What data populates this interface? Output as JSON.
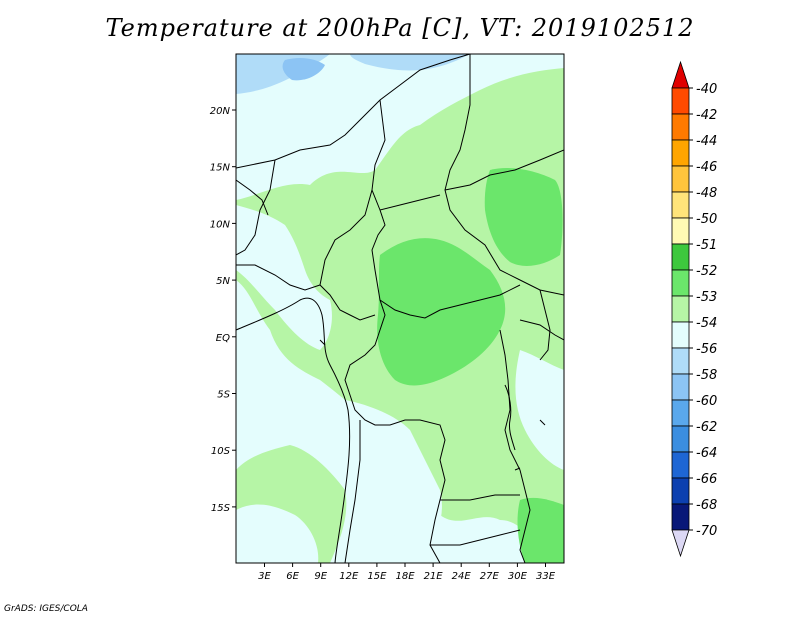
{
  "title": "Temperature at 200hPa [C], VT: 2019102512",
  "credit": "GrADS: IGES/COLA",
  "axes": {
    "lat_ticks": [
      "20N",
      "15N",
      "10N",
      "5N",
      "EQ",
      "5S",
      "10S",
      "15S"
    ],
    "lon_ticks": [
      "3E",
      "6E",
      "9E",
      "12E",
      "15E",
      "18E",
      "21E",
      "24E",
      "27E",
      "30E",
      "33E"
    ]
  },
  "colorbar": {
    "levels": [
      "-40",
      "-42",
      "-44",
      "-46",
      "-48",
      "-50",
      "-51",
      "-52",
      "-53",
      "-54",
      "-56",
      "-58",
      "-60",
      "-62",
      "-64",
      "-66",
      "-68",
      "-70"
    ],
    "colors": [
      "#e00000",
      "#ff4a00",
      "#ff7a00",
      "#ffa500",
      "#ffc43c",
      "#ffe47a",
      "#fffab4",
      "#3dc83d",
      "#6be66b",
      "#b6f5a6",
      "#e4fdfd",
      "#b0dcf8",
      "#8cc4f4",
      "#5aa8ec",
      "#3b8ee0",
      "#1e66d4",
      "#0c40b0",
      "#081878",
      "#dcd8f4"
    ]
  },
  "fills": {
    "background": "#e4fdfd",
    "light_green": "#b6f5a6",
    "mid_green": "#6be66b",
    "dark_green": "#3dc83d",
    "light_blue": "#b0dcf8",
    "blue": "#8cc4f4"
  }
}
